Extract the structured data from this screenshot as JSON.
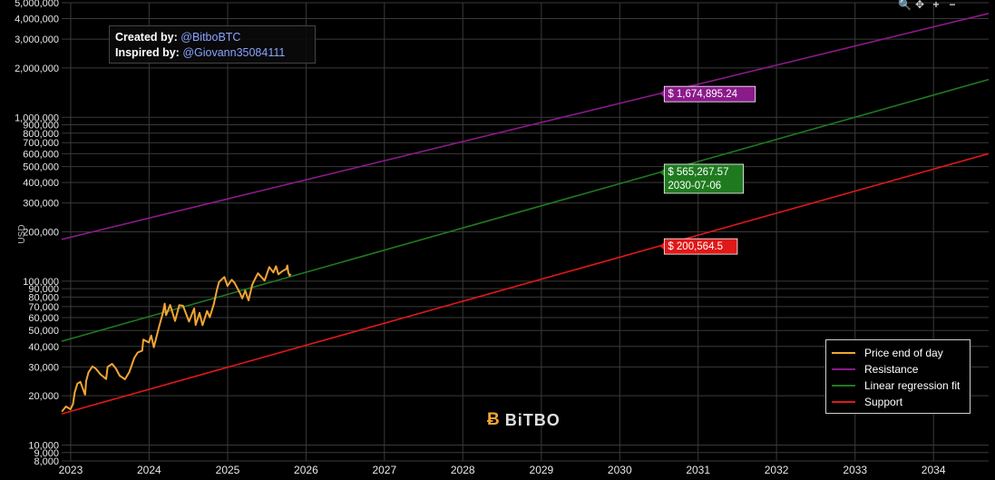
{
  "toolbar": {
    "zoom_icon": "zoom-icon",
    "pan_icon": "pan-icon",
    "zoom_in_icon": "zoom-in-icon",
    "zoom_out_icon": "zoom-out-icon",
    "zoom_label": "🔍",
    "pan_label": "✥",
    "in_label": "+",
    "out_label": "−"
  },
  "credits": {
    "created_label": "Created by:",
    "created_value": "@BitboBTC",
    "inspired_label": "Inspired by:",
    "inspired_value": "@Giovann35084111"
  },
  "logo": {
    "text": "BiTBO",
    "mark": "Ƀ"
  },
  "colors": {
    "price": "#f2a533",
    "resistance": "#8b1a8b",
    "regression": "#1f7a1f",
    "support": "#e01818",
    "grid": "#3a3a3a"
  },
  "chart_data": {
    "type": "line",
    "title": "",
    "xlabel": "",
    "ylabel": "USD",
    "y_scale": "log",
    "ylim": [
      8000,
      5000000
    ],
    "xlim": [
      "2022-11-20",
      "2034-09-15"
    ],
    "grid": true,
    "legend_position": "bottom-right",
    "x_ticks": [
      "2023",
      "2024",
      "2025",
      "2026",
      "2027",
      "2028",
      "2029",
      "2030",
      "2031",
      "2032",
      "2033",
      "2034"
    ],
    "y_ticks": [
      "8,000",
      "9,000",
      "10,000",
      "20,000",
      "30,000",
      "40,000",
      "50,000",
      "60,000",
      "70,000",
      "80,000",
      "90,000",
      "100,000",
      "200,000",
      "300,000",
      "400,000",
      "500,000",
      "600,000",
      "700,000",
      "800,000",
      "900,000",
      "1,000,000",
      "2,000,000",
      "3,000,000",
      "4,000,000",
      "5,000,000"
    ],
    "series": [
      {
        "name": "Price end of day",
        "color": "#f2a533",
        "points": [
          [
            "2022-11-21",
            16000
          ],
          [
            "2022-12-10",
            17200
          ],
          [
            "2022-12-31",
            16550
          ],
          [
            "2023-01-12",
            17800
          ],
          [
            "2023-01-20",
            21000
          ],
          [
            "2023-02-01",
            23700
          ],
          [
            "2023-02-15",
            24300
          ],
          [
            "2023-03-09",
            20300
          ],
          [
            "2023-03-14",
            24600
          ],
          [
            "2023-03-25",
            27800
          ],
          [
            "2023-04-12",
            30200
          ],
          [
            "2023-04-28",
            29300
          ],
          [
            "2023-05-20",
            27000
          ],
          [
            "2023-06-15",
            25300
          ],
          [
            "2023-06-22",
            30000
          ],
          [
            "2023-07-13",
            31300
          ],
          [
            "2023-07-31",
            29200
          ],
          [
            "2023-08-17",
            26500
          ],
          [
            "2023-09-11",
            25200
          ],
          [
            "2023-10-01",
            27900
          ],
          [
            "2023-10-24",
            34000
          ],
          [
            "2023-11-09",
            36700
          ],
          [
            "2023-11-30",
            37700
          ],
          [
            "2023-12-05",
            44000
          ],
          [
            "2023-12-31",
            42300
          ],
          [
            "2024-01-11",
            46600
          ],
          [
            "2024-01-23",
            39500
          ],
          [
            "2024-02-15",
            51800
          ],
          [
            "2024-03-05",
            63700
          ],
          [
            "2024-03-14",
            73000
          ],
          [
            "2024-03-20",
            62000
          ],
          [
            "2024-04-08",
            71600
          ],
          [
            "2024-05-01",
            57200
          ],
          [
            "2024-05-21",
            71400
          ],
          [
            "2024-06-07",
            70800
          ],
          [
            "2024-07-05",
            56700
          ],
          [
            "2024-07-29",
            68200
          ],
          [
            "2024-08-05",
            54000
          ],
          [
            "2024-08-23",
            64100
          ],
          [
            "2024-09-06",
            53900
          ],
          [
            "2024-09-27",
            65800
          ],
          [
            "2024-10-10",
            60300
          ],
          [
            "2024-10-29",
            72700
          ],
          [
            "2024-11-12",
            88700
          ],
          [
            "2024-11-22",
            98900
          ],
          [
            "2024-12-17",
            106000
          ],
          [
            "2024-12-31",
            93400
          ],
          [
            "2025-01-20",
            102000
          ],
          [
            "2025-02-02",
            97700
          ],
          [
            "2025-02-27",
            84700
          ],
          [
            "2025-03-10",
            78600
          ],
          [
            "2025-03-24",
            87500
          ],
          [
            "2025-04-08",
            76300
          ],
          [
            "2025-04-25",
            94700
          ],
          [
            "2025-05-08",
            103000
          ],
          [
            "2025-05-22",
            111700
          ],
          [
            "2025-06-22",
            100900
          ],
          [
            "2025-07-14",
            121900
          ],
          [
            "2025-08-02",
            113000
          ],
          [
            "2025-08-14",
            123300
          ],
          [
            "2025-08-25",
            110100
          ],
          [
            "2025-09-14",
            115400
          ],
          [
            "2025-10-01",
            118600
          ],
          [
            "2025-10-06",
            124700
          ],
          [
            "2025-10-10",
            113000
          ],
          [
            "2025-10-16",
            108200
          ],
          [
            "2025-10-22",
            110500
          ]
        ]
      },
      {
        "name": "Resistance",
        "color": "#8b1a8b",
        "points": [
          [
            "2022-11-20",
            180000
          ],
          [
            "2034-09-15",
            4300000
          ]
        ]
      },
      {
        "name": "Linear regression fit",
        "color": "#1f7a1f",
        "points": [
          [
            "2022-11-20",
            43000
          ],
          [
            "2034-09-15",
            1700000
          ]
        ]
      },
      {
        "name": "Support",
        "color": "#e01818",
        "points": [
          [
            "2022-11-20",
            15500
          ],
          [
            "2034-09-15",
            600000
          ]
        ]
      }
    ],
    "annotations": [
      {
        "series": "Resistance",
        "date": "2030-07-06",
        "label": "$ 1,674,895.24",
        "bg": "#8b1a8b"
      },
      {
        "series": "Linear regression fit",
        "date": "2030-07-06",
        "label": "$ 565,267.57",
        "sublabel": "2030-07-06",
        "bg": "#1f7a1f"
      },
      {
        "series": "Support",
        "date": "2030-07-06",
        "label": "$ 200,564.5",
        "bg": "#e01818"
      }
    ]
  }
}
